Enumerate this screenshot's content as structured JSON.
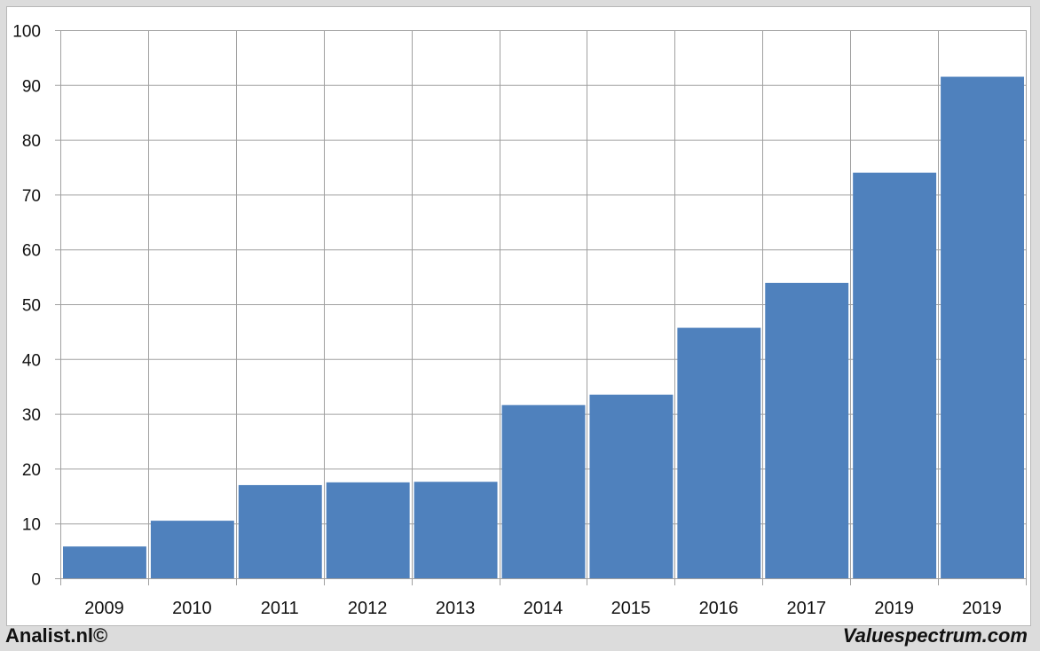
{
  "chart_data": {
    "type": "bar",
    "categories": [
      "2009",
      "2010",
      "2011",
      "2012",
      "2013",
      "2014",
      "2015",
      "2016",
      "2017",
      "2019",
      "2019"
    ],
    "values": [
      5.8,
      10.5,
      17.0,
      17.5,
      17.6,
      31.6,
      33.5,
      45.7,
      53.9,
      74.0,
      91.5
    ],
    "ylim": [
      0,
      100
    ],
    "yticks": [
      0,
      10,
      20,
      30,
      40,
      50,
      60,
      70,
      80,
      90,
      100
    ],
    "grid": true,
    "bar_color": "#4f81bd",
    "title": "",
    "xlabel": "",
    "ylabel": ""
  },
  "footer": {
    "left": "Analist.nl©",
    "right": "Valuespectrum.com"
  }
}
